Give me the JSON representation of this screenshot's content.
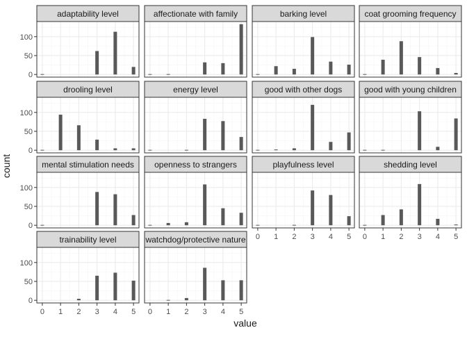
{
  "chart_data": {
    "type": "bar",
    "xlabel": "value",
    "ylabel": "count",
    "x_ticks": [
      0,
      1,
      2,
      3,
      4,
      5
    ],
    "y_ticks": [
      0,
      50,
      100
    ],
    "ylim": [
      -7,
      140
    ],
    "xlim": [
      -0.3,
      5.3
    ],
    "grid": true,
    "facet_columns": 4,
    "colors": {
      "bar": "#595959",
      "panel_border": "#333333",
      "strip_fill": "#d9d9d9",
      "grid_major": "#ebebeb",
      "grid_minor": "#f5f5f5",
      "text": "#1a1a1a",
      "tick_text": "#4d4d4d"
    },
    "facets": [
      {
        "label": "adaptability level",
        "x": [
          0,
          1,
          2,
          3,
          4,
          5
        ],
        "values": [
          1,
          0,
          0,
          62,
          113,
          20
        ]
      },
      {
        "label": "affectionate with family",
        "x": [
          0,
          1,
          2,
          3,
          4,
          5
        ],
        "values": [
          1,
          1,
          0,
          32,
          30,
          133
        ]
      },
      {
        "label": "barking level",
        "x": [
          0,
          1,
          2,
          3,
          4,
          5
        ],
        "values": [
          1,
          22,
          15,
          99,
          34,
          26
        ]
      },
      {
        "label": "coat grooming frequency",
        "x": [
          0,
          1,
          2,
          3,
          4,
          5
        ],
        "values": [
          1,
          39,
          88,
          46,
          17,
          4
        ]
      },
      {
        "label": "drooling level",
        "x": [
          0,
          1,
          2,
          3,
          4,
          5
        ],
        "values": [
          1,
          94,
          66,
          28,
          5,
          5
        ]
      },
      {
        "label": "energy level",
        "x": [
          0,
          1,
          2,
          3,
          4,
          5
        ],
        "values": [
          1,
          0,
          1,
          83,
          77,
          35
        ]
      },
      {
        "label": "good with other dogs",
        "x": [
          0,
          1,
          2,
          3,
          4,
          5
        ],
        "values": [
          1,
          2,
          5,
          120,
          22,
          47
        ]
      },
      {
        "label": "good with young children",
        "x": [
          0,
          1,
          2,
          3,
          4,
          5
        ],
        "values": [
          1,
          1,
          0,
          103,
          9,
          84
        ]
      },
      {
        "label": "mental stimulation needs",
        "x": [
          0,
          1,
          2,
          3,
          4,
          5
        ],
        "values": [
          1,
          0,
          0,
          88,
          82,
          27
        ]
      },
      {
        "label": "openness to strangers",
        "x": [
          0,
          1,
          2,
          3,
          4,
          5
        ],
        "values": [
          1,
          6,
          8,
          108,
          45,
          33
        ]
      },
      {
        "label": "playfulness level",
        "x": [
          0,
          1,
          2,
          3,
          4,
          5
        ],
        "values": [
          1,
          0,
          1,
          92,
          80,
          24
        ]
      },
      {
        "label": "shedding level",
        "x": [
          0,
          1,
          2,
          3,
          4,
          5
        ],
        "values": [
          1,
          27,
          42,
          109,
          17,
          2
        ]
      },
      {
        "label": "trainability level",
        "x": [
          0,
          1,
          2,
          3,
          4,
          5
        ],
        "values": [
          0,
          0,
          4,
          65,
          73,
          52
        ]
      },
      {
        "label": "watchdog/protective nature",
        "x": [
          0,
          1,
          2,
          3,
          4,
          5
        ],
        "values": [
          0,
          1,
          6,
          86,
          53,
          53
        ]
      }
    ]
  }
}
